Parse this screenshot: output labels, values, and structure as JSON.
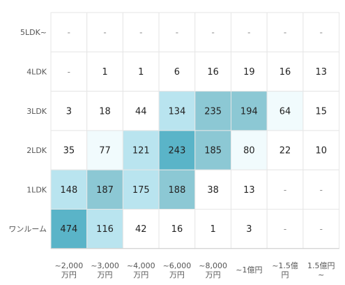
{
  "chart_data": {
    "type": "heatmap",
    "title": "",
    "xlabel": "",
    "ylabel": "",
    "x_categories": [
      [
        "~2,000",
        "万円"
      ],
      [
        "~3,000",
        "万円"
      ],
      [
        "~4,000",
        "万円"
      ],
      [
        "~6,000",
        "万円"
      ],
      [
        "~8,000",
        "万円"
      ],
      [
        "~1億円"
      ],
      [
        "~1.5億",
        "円"
      ],
      [
        "1.5億円",
        "~"
      ]
    ],
    "y_categories": [
      "5LDK~",
      "4LDK",
      "3LDK",
      "2LDK",
      "1LDK",
      "ワンルーム"
    ],
    "cells": [
      [
        "-",
        "-",
        "-",
        "-",
        "-",
        "-",
        "-",
        "-"
      ],
      [
        "-",
        "1",
        "1",
        "6",
        "16",
        "19",
        "16",
        "13"
      ],
      [
        "3",
        "18",
        "44",
        "134",
        "235",
        "194",
        "64",
        "15"
      ],
      [
        "35",
        "77",
        "121",
        "243",
        "185",
        "80",
        "22",
        "10"
      ],
      [
        "148",
        "187",
        "175",
        "188",
        "38",
        "13",
        "-",
        "-"
      ],
      [
        "474",
        "116",
        "42",
        "16",
        "1",
        "3",
        "-",
        "-"
      ]
    ],
    "colors": [
      "#ffffff",
      "#f1fbfd",
      "#b9e4ef",
      "#8cc8d4",
      "#5ab4c8"
    ],
    "grid_color": "#e6e6e6"
  }
}
